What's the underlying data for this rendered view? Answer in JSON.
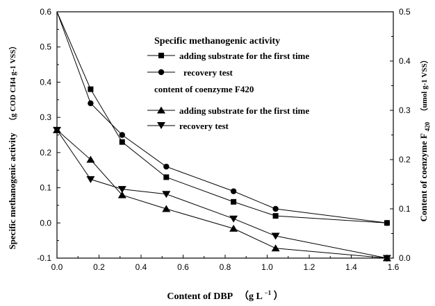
{
  "chart_data": {
    "type": "line",
    "title": "",
    "x_axis": {
      "label_main": "Content of DBP",
      "label_unit_open": "（g L",
      "label_unit_sup": "−1",
      "label_unit_close": "）",
      "range": [
        0.0,
        1.6
      ],
      "ticks": [
        "0.0",
        "0.2",
        "0.4",
        "0.6",
        "0.8",
        "1.0",
        "1.2",
        "1.4",
        "1.6"
      ]
    },
    "y_left": {
      "label_main": "Specific methanogenic activity",
      "label_unit": "（g COD CH4 g-1 VSS）",
      "range": [
        -0.1,
        0.6
      ],
      "ticks": [
        "-0.1",
        "0.0",
        "0.1",
        "0.2",
        "0.3",
        "0.4",
        "0.5",
        "0.6"
      ]
    },
    "y_right": {
      "label_main": "Content of coenzyme F",
      "label_sub": "420",
      "label_unit": "（umol g-1 VSS）",
      "range": [
        0.0,
        0.5
      ],
      "ticks": [
        "0.0",
        "0.1",
        "0.2",
        "0.3",
        "0.4",
        "0.5"
      ]
    },
    "legend": {
      "position": "top-right",
      "group1_title": "Specific methanogenic activity",
      "group2_title": "content of coenzyme F420"
    },
    "series": [
      {
        "name": "adding substrate for the first time",
        "group": "Specific methanogenic activity",
        "axis": "left",
        "marker": "square",
        "x": [
          0.0,
          0.16,
          0.31,
          0.52,
          0.84,
          1.04,
          1.57
        ],
        "y": [
          0.6,
          0.38,
          0.23,
          0.13,
          0.06,
          0.02,
          0.0
        ]
      },
      {
        "name": "recovery test",
        "group": "Specific methanogenic activity",
        "axis": "left",
        "marker": "circle",
        "x": [
          0.0,
          0.16,
          0.31,
          0.52,
          0.84,
          1.04,
          1.57
        ],
        "y": [
          0.6,
          0.34,
          0.25,
          0.16,
          0.09,
          0.04,
          0.0
        ]
      },
      {
        "name": "adding substrate for the first time",
        "group": "content of coenzyme F420",
        "axis": "right",
        "marker": "triangle-up",
        "x": [
          0.0,
          0.16,
          0.31,
          0.52,
          0.84,
          1.04,
          1.57
        ],
        "y": [
          0.26,
          0.2,
          0.128,
          0.1,
          0.06,
          0.02,
          0.0
        ]
      },
      {
        "name": "recovery test",
        "group": "content of coenzyme F420",
        "axis": "right",
        "marker": "triangle-down",
        "x": [
          0.0,
          0.16,
          0.31,
          0.52,
          0.84,
          1.04,
          1.57
        ],
        "y": [
          0.26,
          0.16,
          0.14,
          0.13,
          0.08,
          0.045,
          0.0
        ]
      }
    ]
  }
}
